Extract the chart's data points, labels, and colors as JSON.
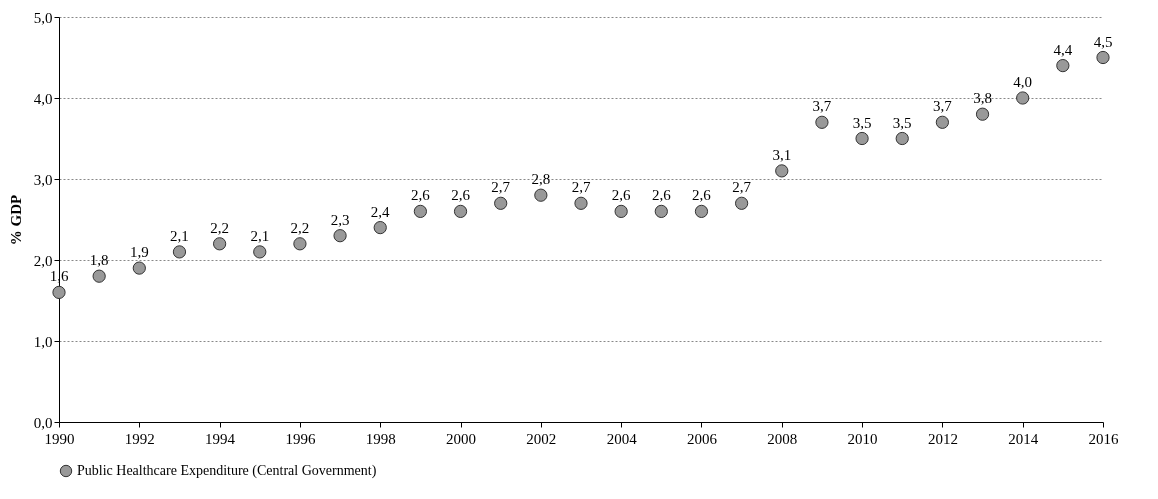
{
  "chart_data": {
    "type": "scatter",
    "ylabel": "% GDP",
    "x": [
      1990,
      1991,
      1992,
      1993,
      1994,
      1995,
      1996,
      1997,
      1998,
      1999,
      2000,
      2001,
      2002,
      2003,
      2004,
      2005,
      2006,
      2007,
      2008,
      2009,
      2010,
      2011,
      2012,
      2013,
      2014,
      2015,
      2016
    ],
    "series": [
      {
        "name": "Public Healthcare Expenditure (Central Government)",
        "color": "#999999",
        "values": [
          1.6,
          1.8,
          1.9,
          2.1,
          2.2,
          2.1,
          2.2,
          2.3,
          2.4,
          2.6,
          2.6,
          2.7,
          2.8,
          2.7,
          2.6,
          2.6,
          2.6,
          2.7,
          3.1,
          3.7,
          3.5,
          3.5,
          3.7,
          3.8,
          4.0,
          4.4,
          4.5
        ],
        "value_labels": [
          "1,6",
          "1,8",
          "1,9",
          "2,1",
          "2,2",
          "2,1",
          "2,2",
          "2,3",
          "2,4",
          "2,6",
          "2,6",
          "2,7",
          "2,8",
          "2,7",
          "2,6",
          "2,6",
          "2,6",
          "2,7",
          "3,1",
          "3,7",
          "3,5",
          "3,5",
          "3,7",
          "3,8",
          "4,0",
          "4,4",
          "4,5"
        ]
      }
    ],
    "xlim": [
      1990,
      2016
    ],
    "xticks": [
      1990,
      1992,
      1994,
      1996,
      1998,
      2000,
      2002,
      2004,
      2006,
      2008,
      2010,
      2012,
      2014,
      2016
    ],
    "ylim": [
      0,
      5
    ],
    "yticks": [
      {
        "value": 0,
        "label": "0,0"
      },
      {
        "value": 1,
        "label": "1,0"
      },
      {
        "value": 2,
        "label": "2,0"
      },
      {
        "value": 3,
        "label": "3,0"
      },
      {
        "value": 4,
        "label": "4,0"
      },
      {
        "value": 5,
        "label": "5,0"
      }
    ],
    "grid": "y",
    "legend": "bottom",
    "marker": "circle"
  }
}
